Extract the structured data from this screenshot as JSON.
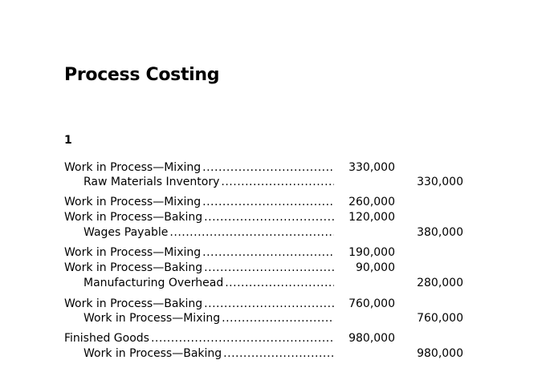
{
  "page": {
    "title": "Process Costing",
    "problem_number": "1"
  },
  "entries": [
    {
      "debits": [
        {
          "account": "Work in Process—Mixing",
          "amount": "330,000"
        }
      ],
      "credits": [
        {
          "account": "Raw Materials Inventory",
          "amount": "330,000"
        }
      ]
    },
    {
      "debits": [
        {
          "account": "Work in Process—Mixing",
          "amount": "260,000"
        },
        {
          "account": "Work in Process—Baking",
          "amount": "120,000"
        }
      ],
      "credits": [
        {
          "account": "Wages Payable",
          "amount": "380,000"
        }
      ]
    },
    {
      "debits": [
        {
          "account": "Work in Process—Mixing",
          "amount": "190,000"
        },
        {
          "account": "Work in Process—Baking",
          "amount": "90,000"
        }
      ],
      "credits": [
        {
          "account": "Manufacturing Overhead",
          "amount": "280,000"
        }
      ]
    },
    {
      "debits": [
        {
          "account": "Work in Process—Baking",
          "amount": "760,000"
        }
      ],
      "credits": [
        {
          "account": "Work in Process—Mixing",
          "amount": "760,000"
        }
      ]
    },
    {
      "debits": [
        {
          "account": "Finished Goods",
          "amount": "980,000"
        }
      ],
      "credits": [
        {
          "account": "Work in Process—Baking",
          "amount": "980,000"
        }
      ]
    }
  ]
}
